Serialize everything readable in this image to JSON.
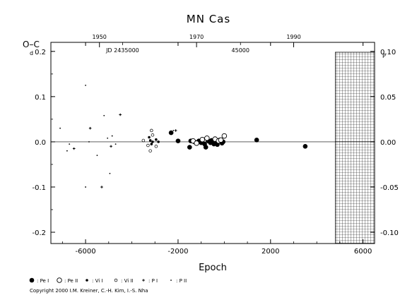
{
  "chart_data": {
    "type": "scatter",
    "title": "MN Cas",
    "ylabel": "O–C",
    "ylabel_unit_left": "d",
    "ylabel_unit_right": "P",
    "xlabel": "Epoch",
    "xlim": [
      -7500,
      6500
    ],
    "ylim": [
      -0.225,
      0.22
    ],
    "ylim_right": [
      -0.1125,
      0.11
    ],
    "x_ticks": [
      -6000,
      -2000,
      2000,
      6000
    ],
    "x_tick_labels": [
      "-6000",
      "-2000",
      "2000",
      "6000"
    ],
    "y_ticks": [
      -0.2,
      -0.1,
      0.0,
      0.1,
      0.2
    ],
    "y_tick_labels": [
      "-0.2",
      "-0.1",
      "0.0",
      "0.1",
      "0.2"
    ],
    "y_right_ticks": [
      -0.1,
      -0.05,
      0.0,
      0.05,
      0.1
    ],
    "y_right_tick_labels": [
      "-0.10",
      "-0.05",
      "0.00",
      "0.05",
      "0.10"
    ],
    "top_axis": {
      "year_ticks": [
        {
          "label": "1950",
          "epoch": -5400
        },
        {
          "label": "1970",
          "epoch": -1200
        },
        {
          "label": "1990",
          "epoch": 3000
        }
      ],
      "jd_labels": [
        {
          "label": "JD 2435000",
          "epoch": -4400
        },
        {
          "label": "45000",
          "epoch": 700
        }
      ]
    },
    "future_region_start": 4800,
    "grid": false,
    "legend": [
      "Pe I",
      "Pe II",
      "Vi I",
      "Vi II",
      "P I",
      "P II"
    ],
    "series": [
      {
        "name": "Pe I",
        "points": [
          [
            -2300,
            0.02
          ],
          [
            -2000,
            0.002
          ],
          [
            -1500,
            -0.012
          ],
          [
            -1450,
            0.002
          ],
          [
            -1300,
            0.0
          ],
          [
            -1100,
            0.002
          ],
          [
            -1000,
            -0.002
          ],
          [
            -850,
            -0.005
          ],
          [
            -800,
            -0.012
          ],
          [
            -700,
            0.002
          ],
          [
            -600,
            -0.002
          ],
          [
            -550,
            0.003
          ],
          [
            -450,
            -0.005
          ],
          [
            -350,
            0.0
          ],
          [
            -300,
            -0.006
          ],
          [
            -200,
            0.004
          ],
          [
            -150,
            0.002
          ],
          [
            -100,
            -0.003
          ],
          [
            -50,
            0.0
          ],
          [
            1400,
            0.004
          ],
          [
            3500,
            -0.01
          ]
        ]
      },
      {
        "name": "Pe II",
        "points": [
          [
            -1350,
            0.002
          ],
          [
            -1200,
            -0.003
          ],
          [
            -950,
            0.005
          ],
          [
            -750,
            0.008
          ],
          [
            -400,
            0.006
          ],
          [
            -250,
            0.002
          ],
          [
            -150,
            0.004
          ],
          [
            0,
            0.013
          ]
        ]
      },
      {
        "name": "Vi I",
        "points": [
          [
            -3250,
            0.01
          ],
          [
            -3200,
            0.003
          ],
          [
            -3150,
            -0.005
          ],
          [
            -3100,
            0.0
          ],
          [
            -2950,
            0.005
          ],
          [
            -2850,
            0.0
          ]
        ]
      },
      {
        "name": "Vi II",
        "points": [
          [
            -3500,
            0.003
          ],
          [
            -3300,
            -0.008
          ],
          [
            -3200,
            -0.02
          ],
          [
            -3150,
            0.025
          ],
          [
            -3100,
            0.015
          ],
          [
            -2950,
            -0.01
          ]
        ]
      },
      {
        "name": "P I",
        "points": [
          [
            -6500,
            -0.015
          ],
          [
            -5800,
            0.03
          ],
          [
            -5300,
            -0.1
          ],
          [
            -4900,
            -0.01
          ],
          [
            -4500,
            0.06
          ],
          [
            -2100,
            0.025
          ]
        ]
      },
      {
        "name": "P II",
        "points": [
          [
            -7100,
            0.03
          ],
          [
            -6800,
            -0.02
          ],
          [
            -6700,
            -0.005
          ],
          [
            -6000,
            0.125
          ],
          [
            -6000,
            -0.1
          ],
          [
            -5850,
            0.0
          ],
          [
            -5500,
            -0.03
          ],
          [
            -5200,
            0.058
          ],
          [
            -5050,
            0.008
          ],
          [
            -4950,
            -0.07
          ],
          [
            -4850,
            0.013
          ],
          [
            -4700,
            -0.005
          ],
          [
            -2200,
            0.025
          ]
        ]
      }
    ]
  },
  "footer": {
    "legend_labels": [
      ": Pe I",
      ": Pe II",
      ": Vi I",
      ": Vi II",
      ": P I",
      ": P II"
    ],
    "copyright": "Copyright 2000 I.M. Kreiner, C.-H. Kim, I.-S. Nha"
  }
}
